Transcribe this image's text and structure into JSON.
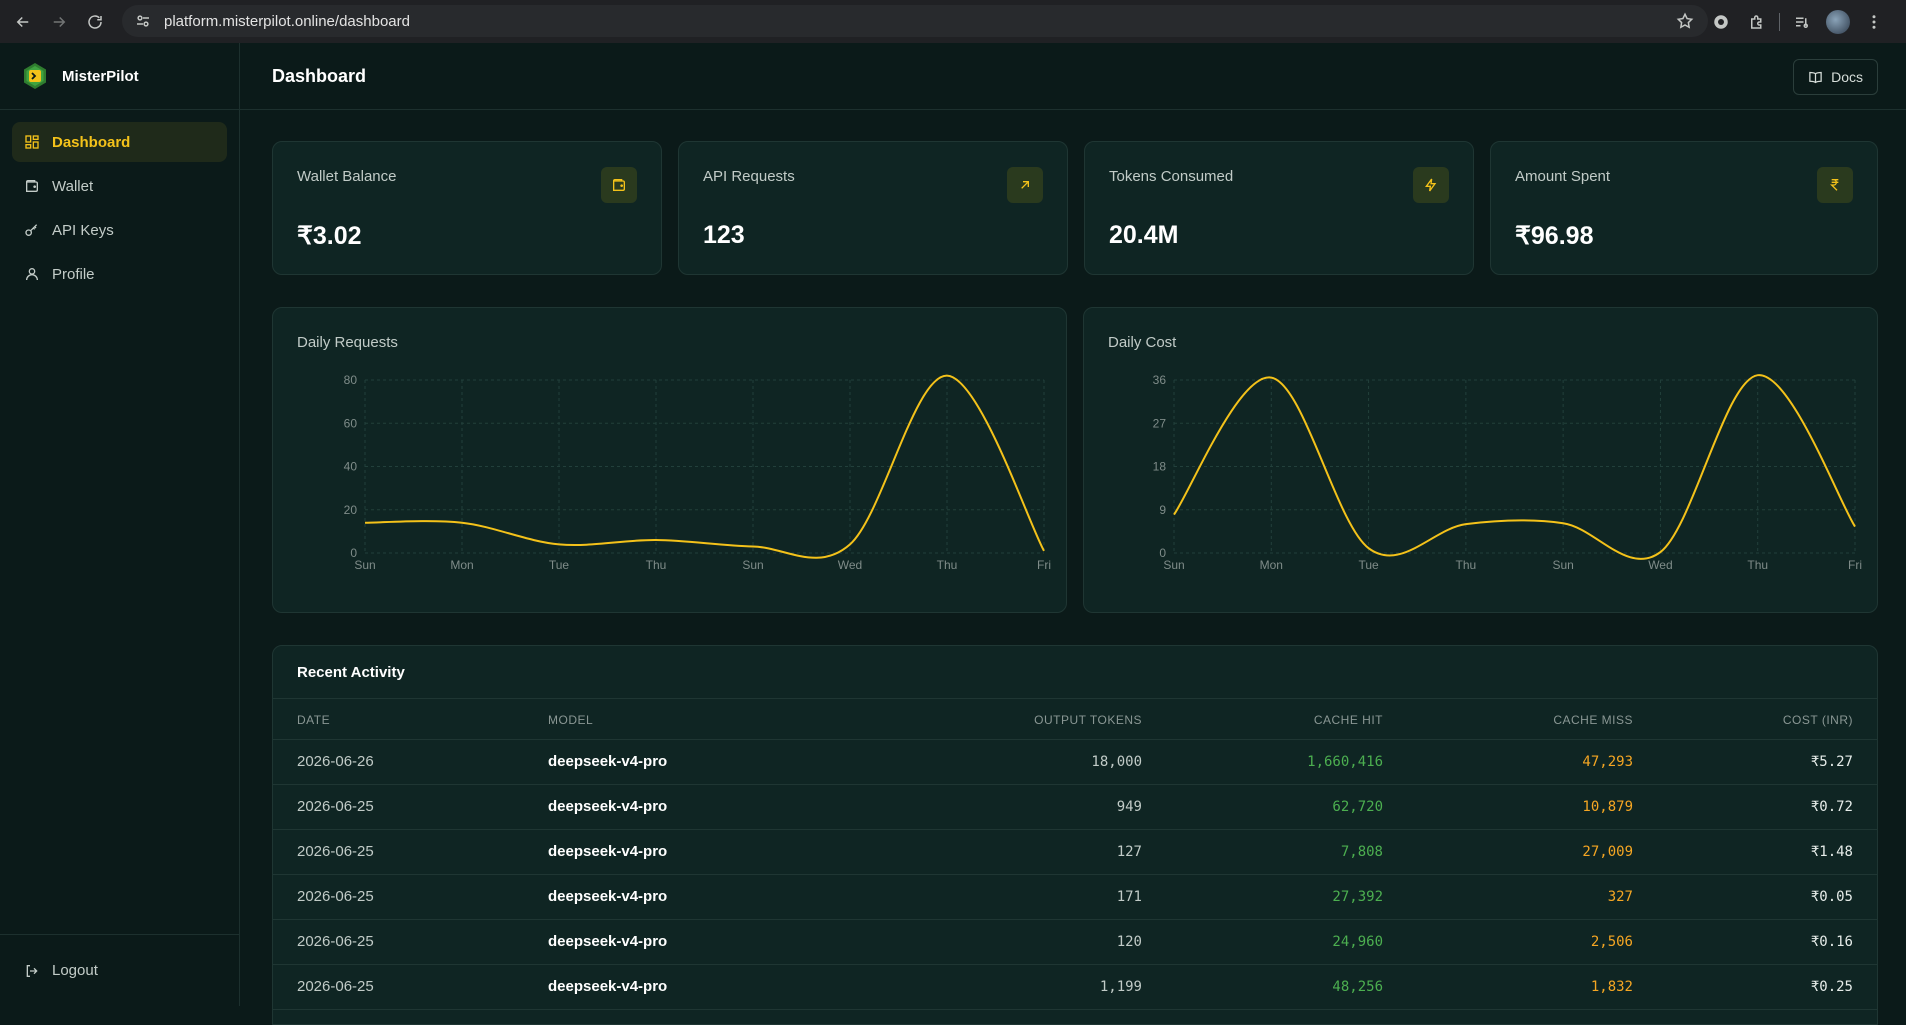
{
  "browser": {
    "url": "platform.misterpilot.online/dashboard"
  },
  "sidebar": {
    "brand": "MisterPilot",
    "items": [
      {
        "label": "Dashboard",
        "icon": "dashboard-icon",
        "active": true
      },
      {
        "label": "Wallet",
        "icon": "wallet-icon",
        "active": false
      },
      {
        "label": "API Keys",
        "icon": "key-icon",
        "active": false
      },
      {
        "label": "Profile",
        "icon": "user-icon",
        "active": false
      }
    ],
    "logout": "Logout"
  },
  "header": {
    "title": "Dashboard",
    "docs_label": "Docs"
  },
  "stats": [
    {
      "label": "Wallet Balance",
      "value": "₹3.02",
      "icon": "wallet-icon"
    },
    {
      "label": "API Requests",
      "value": "123",
      "icon": "arrow-up-right-icon"
    },
    {
      "label": "Tokens Consumed",
      "value": "20.4M",
      "icon": "lightning-icon"
    },
    {
      "label": "Amount Spent",
      "value": "₹96.98",
      "icon": "rupee-icon"
    }
  ],
  "colors": {
    "accent": "#f4c21a",
    "background": "#0b1a19",
    "card": "#0f2523",
    "cache_hit": "#4caf50",
    "cache_miss": "#f5a623"
  },
  "chart_data": [
    {
      "type": "line",
      "title": "Daily Requests",
      "categories": [
        "Sun",
        "Mon",
        "Tue",
        "Thu",
        "Sun",
        "Wed",
        "Thu",
        "Fri"
      ],
      "values": [
        14,
        14,
        4,
        6,
        3,
        4,
        82,
        1
      ],
      "yticks": [
        0,
        20,
        40,
        60,
        80
      ],
      "ylim": [
        0,
        80
      ],
      "color": "#f4c21a",
      "grid": true
    },
    {
      "type": "line",
      "title": "Daily Cost",
      "categories": [
        "Sun",
        "Mon",
        "Tue",
        "Thu",
        "Sun",
        "Wed",
        "Thu",
        "Fri"
      ],
      "values": [
        8,
        36.5,
        1,
        6,
        6.2,
        0.2,
        37,
        5.5
      ],
      "yticks": [
        0,
        9,
        18,
        27,
        36
      ],
      "ylim": [
        0,
        36
      ],
      "color": "#f4c21a",
      "grid": true
    }
  ],
  "activity": {
    "title": "Recent Activity",
    "columns": [
      "DATE",
      "MODEL",
      "OUTPUT TOKENS",
      "CACHE HIT",
      "CACHE MISS",
      "COST (INR)"
    ],
    "rows": [
      {
        "date": "2026-06-26",
        "model": "deepseek-v4-pro",
        "output": "18,000",
        "hit": "1,660,416",
        "miss": "47,293",
        "cost": "₹5.27"
      },
      {
        "date": "2026-06-25",
        "model": "deepseek-v4-pro",
        "output": "949",
        "hit": "62,720",
        "miss": "10,879",
        "cost": "₹0.72"
      },
      {
        "date": "2026-06-25",
        "model": "deepseek-v4-pro",
        "output": "127",
        "hit": "7,808",
        "miss": "27,009",
        "cost": "₹1.48"
      },
      {
        "date": "2026-06-25",
        "model": "deepseek-v4-pro",
        "output": "171",
        "hit": "27,392",
        "miss": "327",
        "cost": "₹0.05"
      },
      {
        "date": "2026-06-25",
        "model": "deepseek-v4-pro",
        "output": "120",
        "hit": "24,960",
        "miss": "2,506",
        "cost": "₹0.16"
      },
      {
        "date": "2026-06-25",
        "model": "deepseek-v4-pro",
        "output": "1,199",
        "hit": "48,256",
        "miss": "1,832",
        "cost": "₹0.25"
      }
    ]
  }
}
